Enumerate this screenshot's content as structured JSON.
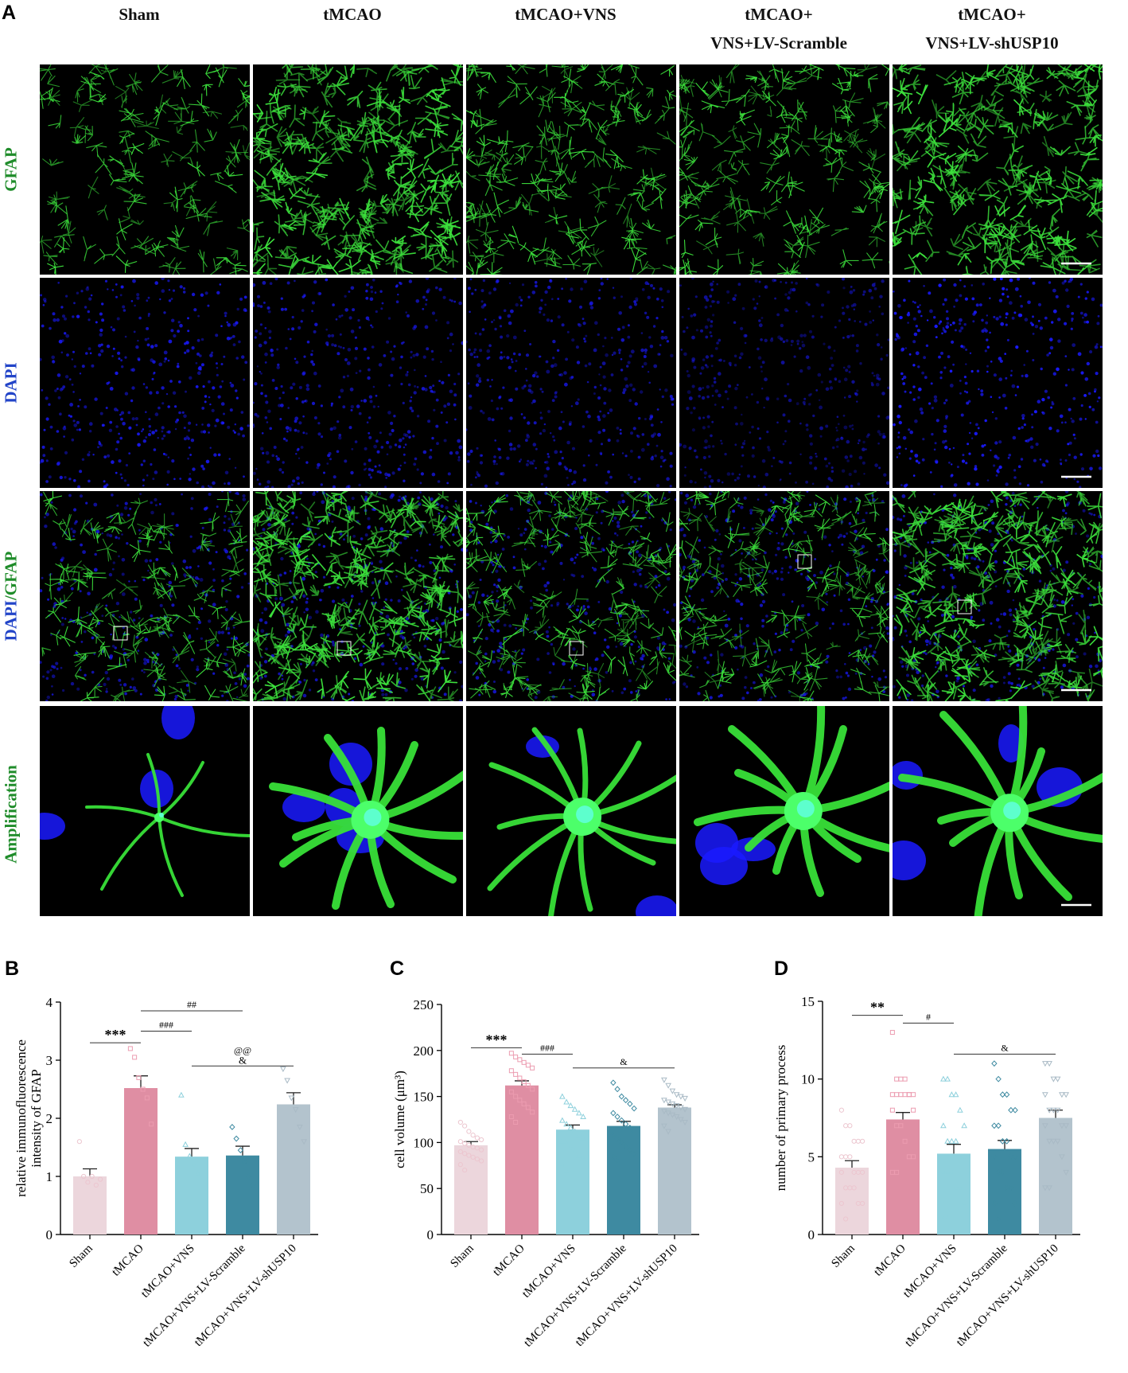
{
  "figure": {
    "panel_letters": [
      "A",
      "B",
      "C",
      "D"
    ],
    "columns": [
      {
        "line1": "",
        "line2": "Sham"
      },
      {
        "line1": "",
        "line2": "tMCAO"
      },
      {
        "line1": "",
        "line2": "tMCAO+VNS"
      },
      {
        "line1": "tMCAO+",
        "line2": "VNS+LV-Scramble"
      },
      {
        "line1": "tMCAO+",
        "line2": "VNS+LV-shUSP10"
      }
    ],
    "rows": [
      {
        "label": "GFAP",
        "label_color": "#1f8c2a"
      },
      {
        "label": "DAPI",
        "label_color": "#2244c8"
      },
      {
        "label_part1": "DAPI",
        "label_part2": "/GFAP"
      },
      {
        "label": "Amplification",
        "label_color": "#1f8c2a"
      }
    ],
    "stain_colors": {
      "gfap": "#3ce03c",
      "dapi": "#1a1aff",
      "background": "#000000"
    },
    "group_colors": [
      "#ecd6dc",
      "#df8ea3",
      "#8dd0dc",
      "#3e8aa1",
      "#b3c3cd"
    ],
    "point_colors": [
      "#ecc6cf",
      "#ec9cb0",
      "#8dd0dc",
      "#3e8aa1",
      "#a9bac5"
    ]
  },
  "chart_data": [
    {
      "type": "bar",
      "panel": "B",
      "categories": [
        "Sham",
        "tMCAO",
        "tMCAO+VNS",
        "tMCAO+VNS+LV-Scramble",
        "tMCAO+VNS+LV-shUSP10"
      ],
      "values": [
        1.0,
        2.52,
        1.34,
        1.36,
        2.24
      ],
      "errors": [
        0.13,
        0.21,
        0.14,
        0.16,
        0.2
      ],
      "points": [
        [
          1.6,
          1.0,
          0.9,
          1.0,
          0.85,
          0.95
        ],
        [
          3.2,
          3.05,
          2.7,
          2.5,
          2.35,
          1.9
        ],
        [
          2.4,
          1.55,
          1.35,
          1.2,
          1.05,
          1.0
        ],
        [
          1.85,
          1.65,
          1.45,
          1.25,
          1.0,
          0.85
        ],
        [
          2.85,
          2.65,
          2.35,
          2.15,
          1.85,
          1.6
        ]
      ],
      "ylabel_line1": "relative immunofluorescence",
      "ylabel_line2": "intensity of GFAP",
      "ylim": [
        0,
        4
      ],
      "yticks": [
        0,
        1,
        2,
        3,
        4
      ],
      "significance": [
        {
          "from": 0,
          "to": 1,
          "y": 3.3,
          "label": "***"
        },
        {
          "from": 1,
          "to": 2,
          "y": 3.5,
          "label": "###"
        },
        {
          "from": 1,
          "to": 3,
          "y": 3.85,
          "label": "##"
        },
        {
          "from": 2,
          "to": 4,
          "y": 2.9,
          "label": "@@",
          "label2": "&"
        }
      ]
    },
    {
      "type": "bar",
      "panel": "C",
      "categories": [
        "Sham",
        "tMCAO",
        "tMCAO+VNS",
        "tMCAO+VNS+LV-Scramble",
        "tMCAO+VNS+LV-shUSP10"
      ],
      "values": [
        97,
        162,
        114,
        118,
        138
      ],
      "errors": [
        4,
        5,
        5,
        5,
        3
      ],
      "points": [
        [
          122,
          118,
          112,
          108,
          105,
          103,
          101,
          99,
          97,
          95,
          94,
          92,
          90,
          88,
          86,
          84,
          82,
          80,
          76,
          70
        ],
        [
          197,
          193,
          190,
          187,
          184,
          181,
          178,
          174,
          170,
          166,
          162,
          158,
          155,
          150,
          146,
          142,
          138,
          133,
          128,
          122
        ],
        [
          150,
          144,
          140,
          136,
          132,
          128,
          124,
          120,
          116,
          112,
          108,
          105,
          102,
          98,
          94,
          90,
          86,
          82,
          75,
          70
        ],
        [
          165,
          158,
          150,
          146,
          142,
          137,
          132,
          128,
          124,
          120,
          116,
          112,
          108,
          104,
          100,
          96,
          92,
          88,
          84,
          80
        ],
        [
          168,
          162,
          156,
          152,
          150,
          148,
          146,
          144,
          142,
          140,
          138,
          136,
          134,
          132,
          130,
          128,
          125,
          122,
          118,
          112
        ]
      ],
      "ylabel": "cell volume (μm³)",
      "ylim": [
        0,
        250
      ],
      "yticks": [
        0,
        50,
        100,
        150,
        200,
        250
      ],
      "significance": [
        {
          "from": 0,
          "to": 1,
          "y": 203,
          "label": "***"
        },
        {
          "from": 1,
          "to": 2,
          "y": 196,
          "label": "###"
        },
        {
          "from": 2,
          "to": 4,
          "y": 181,
          "label": "&"
        }
      ]
    },
    {
      "type": "bar",
      "panel": "D",
      "categories": [
        "Sham",
        "tMCAO",
        "tMCAO+VNS",
        "tMCAO+VNS+LV-Scramble",
        "tMCAO+VNS+LV-shUSP10"
      ],
      "values": [
        4.3,
        7.4,
        5.2,
        5.5,
        7.5
      ],
      "errors": [
        0.45,
        0.45,
        0.6,
        0.55,
        0.5
      ],
      "points": [
        [
          8,
          7,
          7,
          6,
          6,
          6,
          5,
          5,
          5,
          4,
          4,
          4,
          4,
          3,
          3,
          3,
          2,
          2,
          2,
          1
        ],
        [
          13,
          10,
          10,
          10,
          9,
          9,
          9,
          9,
          9,
          9,
          9,
          8,
          8,
          7,
          7,
          6,
          5,
          5,
          4,
          4
        ],
        [
          10,
          10,
          9,
          9,
          8,
          7,
          7,
          6,
          6,
          6,
          5,
          5,
          4,
          4,
          4,
          3,
          3,
          2,
          1,
          1
        ],
        [
          11,
          10,
          9,
          9,
          8,
          8,
          7,
          7,
          6,
          6,
          5,
          5,
          5,
          4,
          4,
          3,
          3,
          2,
          2,
          1
        ],
        [
          11,
          11,
          10,
          10,
          9,
          9,
          9,
          8,
          8,
          8,
          7,
          7,
          7,
          6,
          6,
          6,
          5,
          4,
          3,
          3
        ]
      ],
      "ylabel": "number of primary process",
      "ylim": [
        0,
        15
      ],
      "yticks": [
        0,
        5,
        10,
        15
      ],
      "significance": [
        {
          "from": 0,
          "to": 1,
          "y": 14.1,
          "label": "**"
        },
        {
          "from": 1,
          "to": 2,
          "y": 13.6,
          "label": "#"
        },
        {
          "from": 2,
          "to": 4,
          "y": 11.6,
          "label": "&"
        }
      ]
    }
  ]
}
